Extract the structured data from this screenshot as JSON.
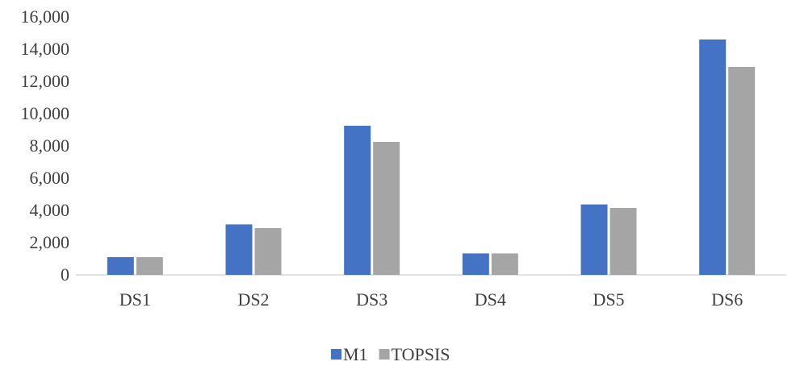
{
  "chart_data": {
    "type": "bar",
    "categories": [
      "DS1",
      "DS2",
      "DS3",
      "DS4",
      "DS5",
      "DS6"
    ],
    "series": [
      {
        "name": "M1",
        "color": "#4472C4",
        "values": [
          1100,
          3130,
          9250,
          1330,
          4370,
          14600
        ]
      },
      {
        "name": "TOPSIS",
        "color": "#A5A5A5",
        "values": [
          1100,
          2900,
          8250,
          1330,
          4150,
          12900
        ]
      }
    ],
    "ylim": [
      0,
      16000
    ],
    "yticks": [
      0,
      2000,
      4000,
      6000,
      8000,
      10000,
      12000,
      14000,
      16000
    ],
    "ytick_labels": [
      "0",
      "2,000",
      "4,000",
      "6,000",
      "8,000",
      "10,000",
      "12,000",
      "14,000",
      "16,000"
    ],
    "grid": false,
    "legend_position": "bottom-center",
    "axis_color": "#D9D9D9",
    "label_color": "#404040"
  }
}
